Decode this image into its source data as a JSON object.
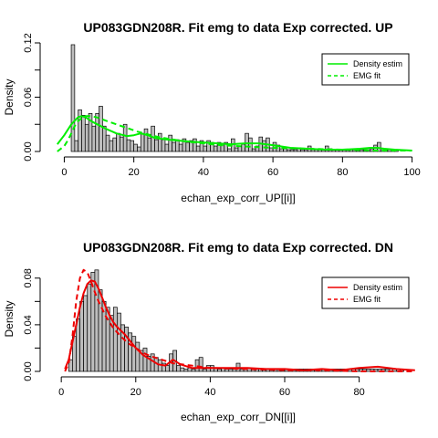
{
  "chart_data": [
    {
      "type": "histogram",
      "title": "UP083GDN208R. Fit emg to data Exp corrected. UP",
      "xlabel": "echan_exp_corr_UP[[i]]",
      "ylabel": "Density",
      "xlim": [
        -3,
        103
      ],
      "ylim": [
        0,
        0.12
      ],
      "xticks": [
        0,
        20,
        40,
        60,
        80,
        100
      ],
      "yticks": [
        0.0,
        0.06,
        0.12
      ],
      "ytick_labels": [
        "0.00",
        "0.06",
        "0.12"
      ],
      "yticks_minor": [
        0.03,
        0.09
      ],
      "bin_start": 2,
      "bin_width": 1,
      "bin_density": [
        0.118,
        0.012,
        0.046,
        0.04,
        0.03,
        0.042,
        0.028,
        0.042,
        0.05,
        0.028,
        0.018,
        0.012,
        0.015,
        0.02,
        0.016,
        0.03,
        0.013,
        0.012,
        0.008,
        0.005,
        0.02,
        0.025,
        0.015,
        0.028,
        0.013,
        0.02,
        0.013,
        0.008,
        0.018,
        0.01,
        0.013,
        0.008,
        0.014,
        0.01,
        0.012,
        0.014,
        0.006,
        0.012,
        0.006,
        0.012,
        0.01,
        0.006,
        0.01,
        0.008,
        0.01,
        0.003,
        0.014,
        0.004,
        0.006,
        0.008,
        0.02,
        0.015,
        0.003,
        0.006,
        0.016,
        0.012,
        0.015,
        0.004,
        0.01,
        0.007,
        0.003,
        0.003,
        0.002,
        0.002,
        0.002,
        0.004,
        0.002,
        0.002,
        0.006,
        0.002,
        0.002,
        0.002,
        0.002,
        0.006,
        0.003,
        0.002,
        0.002,
        0.002,
        0.002,
        0.002,
        0.002,
        0.002,
        0.002,
        0.002,
        0.002,
        0.002,
        0.003,
        0.007,
        0.01,
        0.003,
        0.002,
        0.002,
        0.002,
        0.002
      ],
      "series": [
        {
          "name": "Density estim",
          "color": "#00ee00",
          "style": "solid",
          "x": [
            -2,
            0,
            2,
            4,
            5,
            6,
            8,
            10,
            12,
            15,
            18,
            20,
            22,
            24,
            26,
            28,
            30,
            33,
            36,
            40,
            44,
            48,
            52,
            56,
            60,
            65,
            70,
            75,
            80,
            85,
            88,
            90,
            92,
            95,
            100
          ],
          "y": [
            0.008,
            0.018,
            0.03,
            0.038,
            0.039,
            0.038,
            0.033,
            0.029,
            0.025,
            0.02,
            0.017,
            0.018,
            0.02,
            0.018,
            0.015,
            0.014,
            0.013,
            0.012,
            0.011,
            0.01,
            0.009,
            0.008,
            0.009,
            0.009,
            0.007,
            0.004,
            0.003,
            0.002,
            0.002,
            0.003,
            0.004,
            0.004,
            0.003,
            0.002,
            0.001
          ]
        },
        {
          "name": "EMG fit",
          "color": "#00ee00",
          "style": "dashed",
          "x": [
            -2,
            0,
            1,
            2,
            3,
            4,
            6,
            8,
            10,
            12,
            15,
            18,
            21,
            24,
            27,
            30,
            35,
            40,
            45,
            50,
            60,
            70,
            80,
            90,
            100
          ],
          "y": [
            0.0,
            0.006,
            0.012,
            0.02,
            0.028,
            0.034,
            0.039,
            0.039,
            0.037,
            0.034,
            0.03,
            0.026,
            0.022,
            0.019,
            0.016,
            0.014,
            0.011,
            0.009,
            0.007,
            0.006,
            0.004,
            0.003,
            0.002,
            0.001,
            0.001
          ]
        }
      ],
      "legend_position": "top-right"
    },
    {
      "type": "histogram",
      "title": "UP083GDN208R. Fit emg to data Exp corrected. DN",
      "xlabel": "echan_exp_corr_DN[[i]]",
      "ylabel": "Density",
      "xlim": [
        -2,
        97
      ],
      "ylim": [
        0,
        0.09
      ],
      "xticks": [
        0,
        20,
        40,
        60,
        80
      ],
      "yticks": [
        0.0,
        0.04,
        0.08
      ],
      "ytick_labels": [
        "0.00",
        "0.04",
        "0.08"
      ],
      "yticks_minor": [
        0.02,
        0.06
      ],
      "bin_start": 2,
      "bin_width": 1,
      "bin_density": [
        0.01,
        0.03,
        0.045,
        0.06,
        0.065,
        0.075,
        0.085,
        0.087,
        0.07,
        0.06,
        0.055,
        0.048,
        0.055,
        0.05,
        0.04,
        0.038,
        0.033,
        0.03,
        0.025,
        0.018,
        0.02,
        0.013,
        0.015,
        0.012,
        0.01,
        0.007,
        0.005,
        0.015,
        0.018,
        0.005,
        0.003,
        0.002,
        0.003,
        0.002,
        0.01,
        0.012,
        0.002,
        0.005,
        0.005,
        0.003,
        0.002,
        0.003,
        0.002,
        0.002,
        0.002,
        0.007,
        0.002,
        0.002,
        0.003,
        0.002,
        0.002,
        0.002,
        0.002,
        0.002,
        0.002,
        0.002,
        0.002,
        0.002,
        0.002,
        0.002,
        0.002,
        0.002,
        0.002,
        0.002,
        0.002,
        0.002,
        0.002,
        0.002,
        0.002,
        0.002,
        0.002,
        0.002,
        0.002,
        0.002,
        0.002,
        0.002,
        0.002,
        0.002,
        0.002,
        0.002,
        0.002,
        0.002,
        0.002,
        0.002,
        0.002,
        0.002,
        0.002,
        0.002,
        0.002,
        0.002
      ],
      "series": [
        {
          "name": "Density estim",
          "color": "#ee0000",
          "style": "solid",
          "x": [
            1,
            2,
            3,
            4,
            5,
            6,
            7,
            8,
            9,
            10,
            11,
            12,
            13,
            14,
            15,
            16,
            17,
            18,
            20,
            22,
            24,
            26,
            28,
            30,
            32,
            35,
            40,
            45,
            50,
            55,
            60,
            65,
            70,
            75,
            80,
            85,
            90,
            95
          ],
          "y": [
            0.002,
            0.01,
            0.025,
            0.04,
            0.055,
            0.067,
            0.075,
            0.078,
            0.077,
            0.071,
            0.063,
            0.055,
            0.048,
            0.042,
            0.038,
            0.035,
            0.032,
            0.028,
            0.02,
            0.014,
            0.01,
            0.006,
            0.005,
            0.01,
            0.006,
            0.003,
            0.003,
            0.003,
            0.003,
            0.002,
            0.002,
            0.001,
            0.002,
            0.001,
            0.003,
            0.004,
            0.002,
            0.001
          ]
        },
        {
          "name": "EMG fit",
          "color": "#ee0000",
          "style": "dashed",
          "x": [
            1,
            2,
            3,
            4,
            5,
            6,
            7,
            8,
            9,
            10,
            12,
            14,
            16,
            18,
            20,
            22,
            24,
            26,
            28,
            30,
            35,
            40,
            50,
            60,
            70,
            80,
            90,
            95
          ],
          "y": [
            0.0,
            0.007,
            0.03,
            0.06,
            0.08,
            0.087,
            0.085,
            0.077,
            0.068,
            0.06,
            0.047,
            0.037,
            0.03,
            0.024,
            0.02,
            0.016,
            0.013,
            0.011,
            0.009,
            0.007,
            0.005,
            0.003,
            0.002,
            0.001,
            0.001,
            0.0,
            0.0,
            0.0
          ]
        }
      ],
      "legend_position": "top-right"
    }
  ]
}
